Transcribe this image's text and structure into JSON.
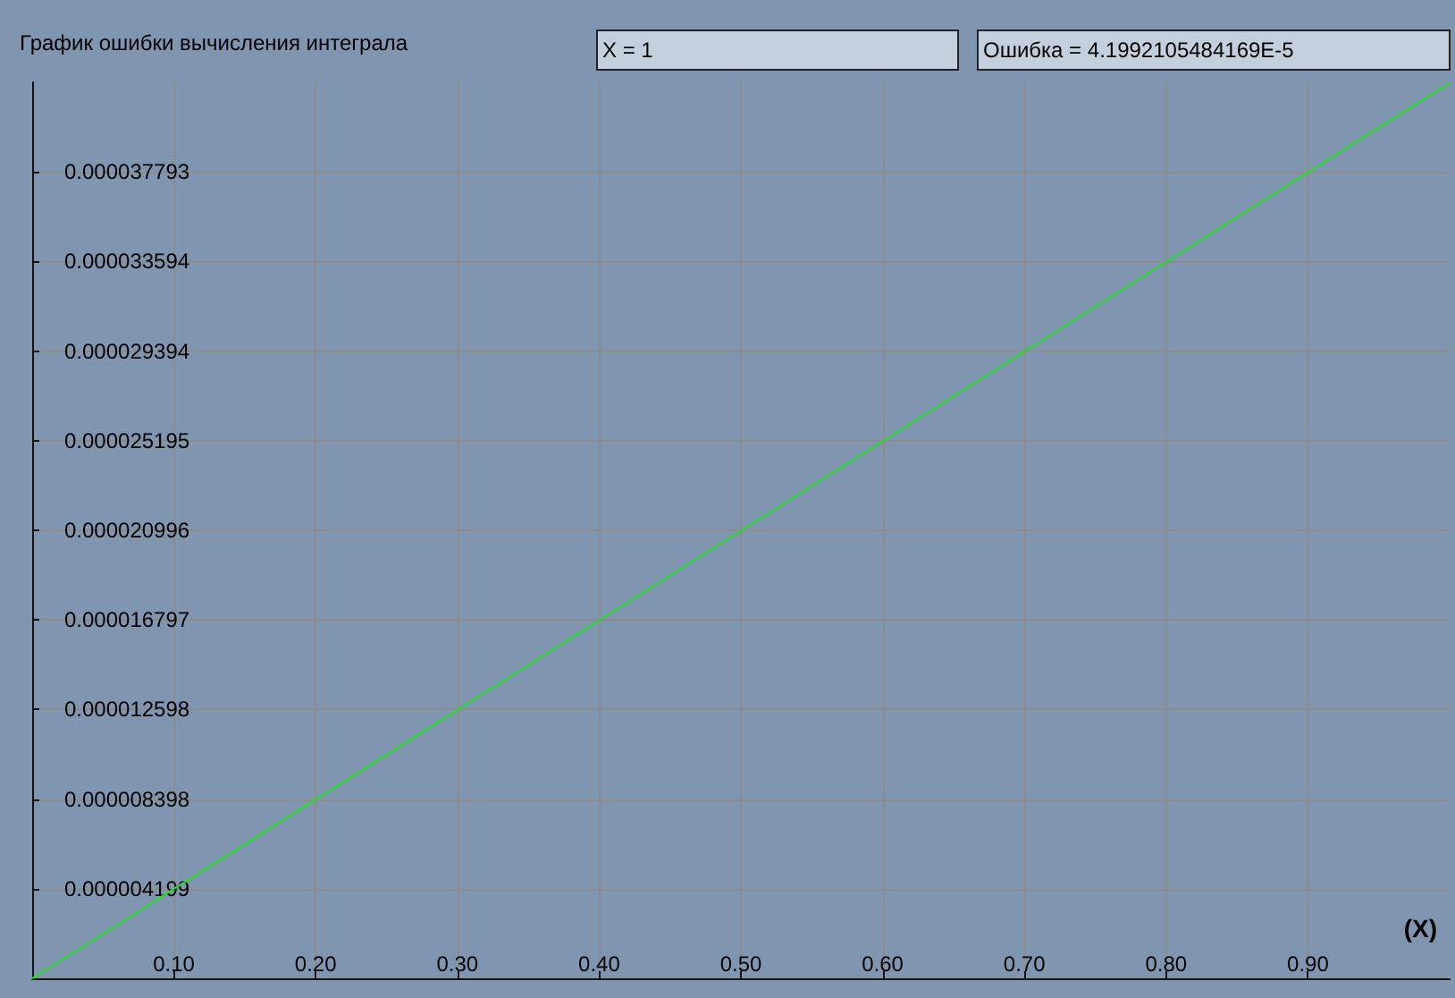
{
  "chart_data": {
    "type": "line",
    "title": "График ошибки вычисления интеграла",
    "xlabel": "(X)",
    "annotations": [
      "X = 1",
      "Ошибка = 4.1992105484169E-5"
    ],
    "x": [
      0,
      1
    ],
    "series": [
      {
        "color": "#22e022",
        "values": [
          0,
          4.199e-05
        ]
      }
    ],
    "xlim": [
      0,
      1
    ],
    "ylim": [
      0,
      4.1992e-05
    ],
    "xticks": [
      {
        "value": 0.1,
        "label": "0.10"
      },
      {
        "value": 0.2,
        "label": "0.20"
      },
      {
        "value": 0.3,
        "label": "0.30"
      },
      {
        "value": 0.4,
        "label": "0.40"
      },
      {
        "value": 0.5,
        "label": "0.50"
      },
      {
        "value": 0.6,
        "label": "0.60"
      },
      {
        "value": 0.7,
        "label": "0.70"
      },
      {
        "value": 0.8,
        "label": "0.80"
      },
      {
        "value": 0.9,
        "label": "0.90"
      }
    ],
    "yticks": [
      {
        "value": 4.199e-06,
        "label": "0.000004199"
      },
      {
        "value": 8.398e-06,
        "label": "0.000008398"
      },
      {
        "value": 1.2598e-05,
        "label": "0.000012598"
      },
      {
        "value": 1.6797e-05,
        "label": "0.000016797"
      },
      {
        "value": 2.0996e-05,
        "label": "0.000020996"
      },
      {
        "value": 2.5195e-05,
        "label": "0.000025195"
      },
      {
        "value": 2.9394e-05,
        "label": "0.000029394"
      },
      {
        "value": 3.3594e-05,
        "label": "0.000033594"
      },
      {
        "value": 3.7793e-05,
        "label": "0.000037793"
      }
    ],
    "grid": true,
    "marker": "none",
    "line_style": "solid"
  }
}
